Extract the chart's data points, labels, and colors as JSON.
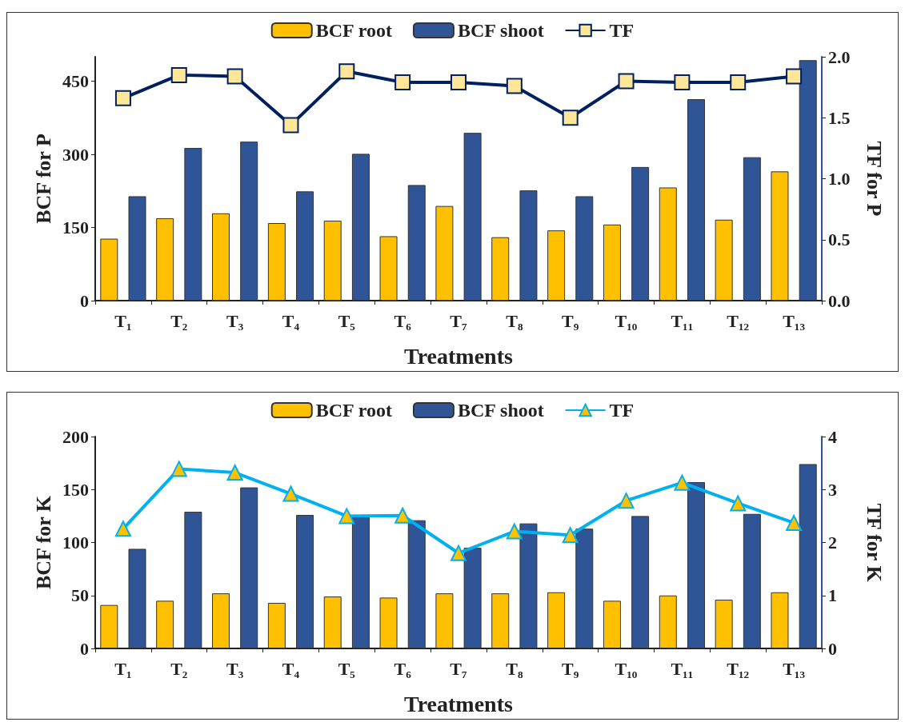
{
  "chart_data": [
    {
      "type": "bar",
      "xlabel": "Treatments",
      "ylabel": "BCF for P",
      "y2label": "TF for P",
      "categories": [
        "T₁",
        "T₂",
        "T₃",
        "T₄",
        "T₅",
        "T₆",
        "T₇",
        "T₈",
        "T₉",
        "T₁₀",
        "T₁₁",
        "T₁₂",
        "T₁₃"
      ],
      "ylim": [
        0,
        500
      ],
      "yticks": [
        0,
        150,
        300,
        450
      ],
      "y2lim": [
        0,
        2
      ],
      "y2ticks": [
        {
          "value": 0,
          "label": "0.0"
        },
        {
          "value": 0.5,
          "label": "0.5"
        },
        {
          "value": 1,
          "label": "1.0"
        },
        {
          "value": 1.5,
          "label": "1.5"
        },
        {
          "value": 2,
          "label": "2.0"
        }
      ],
      "legend": "top",
      "grid": false,
      "marker": "square",
      "series": [
        {
          "name": "BCF root",
          "color": "#ffc000",
          "values": [
            127,
            169,
            179,
            159,
            164,
            132,
            194,
            130,
            144,
            156,
            232,
            166,
            265
          ]
        },
        {
          "name": "BCF shoot",
          "color": "#2f5597",
          "values": [
            214,
            313,
            326,
            224,
            301,
            237,
            344,
            226,
            214,
            274,
            413,
            294,
            493
          ]
        },
        {
          "name": "TF",
          "type": "line",
          "axis": "y2",
          "color": "#002060",
          "values": [
            1.66,
            1.85,
            1.84,
            1.44,
            1.88,
            1.79,
            1.79,
            1.76,
            1.5,
            1.8,
            1.79,
            1.79,
            1.84
          ]
        }
      ]
    },
    {
      "type": "bar",
      "xlabel": "Treatments",
      "ylabel": "BCF for K",
      "y2label": "TF for K",
      "categories": [
        "T₁",
        "T₂",
        "T₃",
        "T₄",
        "T₅",
        "T₆",
        "T₇",
        "T₈",
        "T₉",
        "T₁₀",
        "T₁₁",
        "T₁₂",
        "T₁₃"
      ],
      "ylim": [
        0,
        200
      ],
      "yticks": [
        0,
        50,
        100,
        150,
        200
      ],
      "y2lim": [
        0,
        4
      ],
      "y2ticks": [
        0,
        1,
        2,
        3,
        4
      ],
      "legend": "top",
      "grid": false,
      "marker": "triangle",
      "series": [
        {
          "name": "BCF root",
          "color": "#ffc000",
          "values": [
            41,
            45,
            52,
            43,
            49,
            48,
            52,
            52,
            53,
            45,
            50,
            46,
            53
          ]
        },
        {
          "name": "BCF shoot",
          "color": "#2f5597",
          "values": [
            94,
            129,
            152,
            126,
            124,
            121,
            95,
            118,
            113,
            125,
            157,
            127,
            174
          ]
        },
        {
          "name": "TF",
          "type": "line",
          "axis": "y2",
          "color": "#00b0f0",
          "values": [
            2.26,
            3.39,
            3.32,
            2.92,
            2.5,
            2.51,
            1.8,
            2.21,
            2.14,
            2.79,
            3.13,
            2.74,
            2.37
          ]
        }
      ]
    }
  ]
}
